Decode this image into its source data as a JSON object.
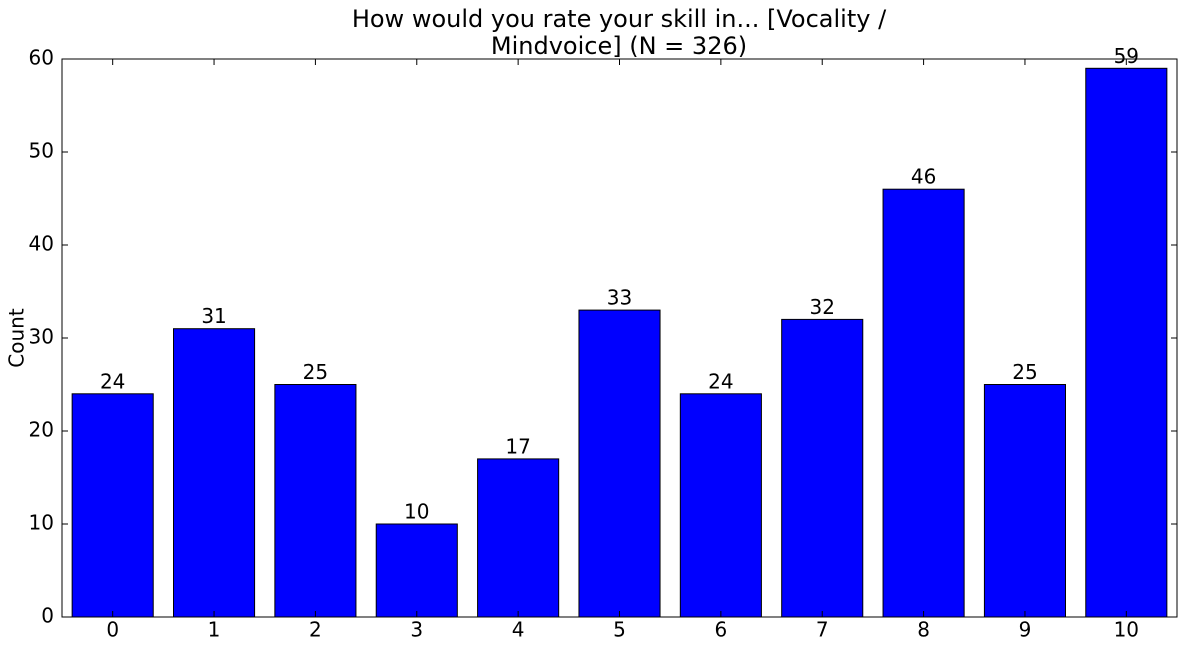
{
  "chart_data": {
    "type": "bar",
    "title": [
      "How would you rate your skill in... [Vocality /",
      "Mindvoice] (N = 326)"
    ],
    "y_label": "Count",
    "categories": [
      "0",
      "1",
      "2",
      "3",
      "4",
      "5",
      "6",
      "7",
      "8",
      "9",
      "10"
    ],
    "values": [
      24,
      31,
      25,
      10,
      17,
      33,
      24,
      32,
      46,
      25,
      59
    ],
    "color": "#0000ff",
    "ylim": [
      0,
      60
    ],
    "yticks": [
      0,
      10,
      20,
      30,
      40,
      50,
      60
    ],
    "grid": false
  }
}
